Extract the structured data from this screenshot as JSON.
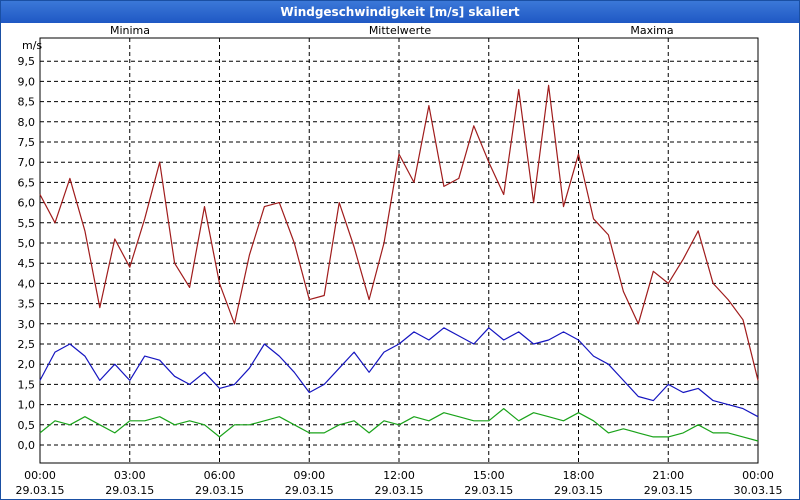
{
  "window": {
    "title": "Windgeschwindigkeit [m/s] skaliert"
  },
  "chart_data": {
    "type": "line",
    "title": "Windgeschwindigkeit [m/s] skaliert",
    "ylabel": "m/s",
    "ylim": [
      0,
      10
    ],
    "yticks": [
      "0,0",
      "0,5",
      "1,0",
      "1,5",
      "2,0",
      "2,5",
      "3,0",
      "3,5",
      "4,0",
      "4,5",
      "5,0",
      "5,5",
      "6,0",
      "6,5",
      "7,0",
      "7,5",
      "8,0",
      "8,5",
      "9,0",
      "9,5"
    ],
    "xlim": [
      0,
      24
    ],
    "xticks": [
      {
        "time": "00:00",
        "date": "29.03.15"
      },
      {
        "time": "03:00",
        "date": "29.03.15"
      },
      {
        "time": "06:00",
        "date": "29.03.15"
      },
      {
        "time": "09:00",
        "date": "29.03.15"
      },
      {
        "time": "12:00",
        "date": "29.03.15"
      },
      {
        "time": "15:00",
        "date": "29.03.15"
      },
      {
        "time": "18:00",
        "date": "29.03.15"
      },
      {
        "time": "21:00",
        "date": "29.03.15"
      },
      {
        "time": "00:00",
        "date": "30.03.15"
      }
    ],
    "grid": true,
    "legend": [
      "Minima",
      "Mittelwerte",
      "Maxima"
    ],
    "series": [
      {
        "name": "Minima",
        "color": "#1aa31a",
        "x": [
          0,
          0.5,
          1,
          1.5,
          2,
          2.5,
          3,
          3.5,
          4,
          4.5,
          5,
          5.5,
          6,
          6.5,
          7,
          7.5,
          8,
          8.5,
          9,
          9.5,
          10,
          10.5,
          11,
          11.5,
          12,
          12.5,
          13,
          13.5,
          14,
          14.5,
          15,
          15.5,
          16,
          16.5,
          17,
          17.5,
          18,
          18.5,
          19,
          19.5,
          20,
          20.5,
          21,
          21.5,
          22,
          22.5,
          23,
          23.5,
          24
        ],
        "values": [
          0.3,
          0.6,
          0.5,
          0.7,
          0.5,
          0.3,
          0.6,
          0.6,
          0.7,
          0.5,
          0.6,
          0.5,
          0.2,
          0.5,
          0.5,
          0.6,
          0.7,
          0.5,
          0.3,
          0.3,
          0.5,
          0.6,
          0.3,
          0.6,
          0.5,
          0.7,
          0.6,
          0.8,
          0.7,
          0.6,
          0.6,
          0.9,
          0.6,
          0.8,
          0.7,
          0.6,
          0.8,
          0.6,
          0.3,
          0.4,
          0.3,
          0.2,
          0.2,
          0.3,
          0.5,
          0.3,
          0.3,
          0.2,
          0.1
        ]
      },
      {
        "name": "Mittelwerte",
        "color": "#1515c0",
        "x": [
          0,
          0.5,
          1,
          1.5,
          2,
          2.5,
          3,
          3.5,
          4,
          4.5,
          5,
          5.5,
          6,
          6.5,
          7,
          7.5,
          8,
          8.5,
          9,
          9.5,
          10,
          10.5,
          11,
          11.5,
          12,
          12.5,
          13,
          13.5,
          14,
          14.5,
          15,
          15.5,
          16,
          16.5,
          17,
          17.5,
          18,
          18.5,
          19,
          19.5,
          20,
          20.5,
          21,
          21.5,
          22,
          22.5,
          23,
          23.5,
          24
        ],
        "values": [
          1.6,
          2.3,
          2.5,
          2.2,
          1.6,
          2.0,
          1.6,
          2.2,
          2.1,
          1.7,
          1.5,
          1.8,
          1.4,
          1.5,
          1.9,
          2.5,
          2.2,
          1.8,
          1.3,
          1.5,
          1.9,
          2.3,
          1.8,
          2.3,
          2.5,
          2.8,
          2.6,
          2.9,
          2.7,
          2.5,
          2.9,
          2.6,
          2.8,
          2.5,
          2.6,
          2.8,
          2.6,
          2.2,
          2.0,
          1.6,
          1.2,
          1.1,
          1.5,
          1.3,
          1.4,
          1.1,
          1.0,
          0.9,
          0.7
        ]
      },
      {
        "name": "Maxima",
        "color": "#a01c1c",
        "x": [
          0,
          0.5,
          1,
          1.5,
          2,
          2.5,
          3,
          3.5,
          4,
          4.5,
          5,
          5.5,
          6,
          6.5,
          7,
          7.5,
          8,
          8.5,
          9,
          9.5,
          10,
          10.5,
          11,
          11.5,
          12,
          12.5,
          13,
          13.5,
          14,
          14.5,
          15,
          15.5,
          16,
          16.5,
          17,
          17.5,
          18,
          18.5,
          19,
          19.5,
          20,
          20.5,
          21,
          21.5,
          22,
          22.5,
          23,
          23.5,
          24
        ],
        "values": [
          6.2,
          5.5,
          6.6,
          5.3,
          3.4,
          5.1,
          4.4,
          5.6,
          7.0,
          4.5,
          3.9,
          5.9,
          4.0,
          3.0,
          4.7,
          5.9,
          6.0,
          5.0,
          3.6,
          3.7,
          6.0,
          4.9,
          3.6,
          5.0,
          7.2,
          6.5,
          8.4,
          6.4,
          6.6,
          7.9,
          7.0,
          6.2,
          8.8,
          6.0,
          8.9,
          5.9,
          7.2,
          5.6,
          5.2,
          3.8,
          3.0,
          4.3,
          4.0,
          4.6,
          5.3,
          4.0,
          3.6,
          3.1,
          1.6
        ]
      }
    ]
  }
}
